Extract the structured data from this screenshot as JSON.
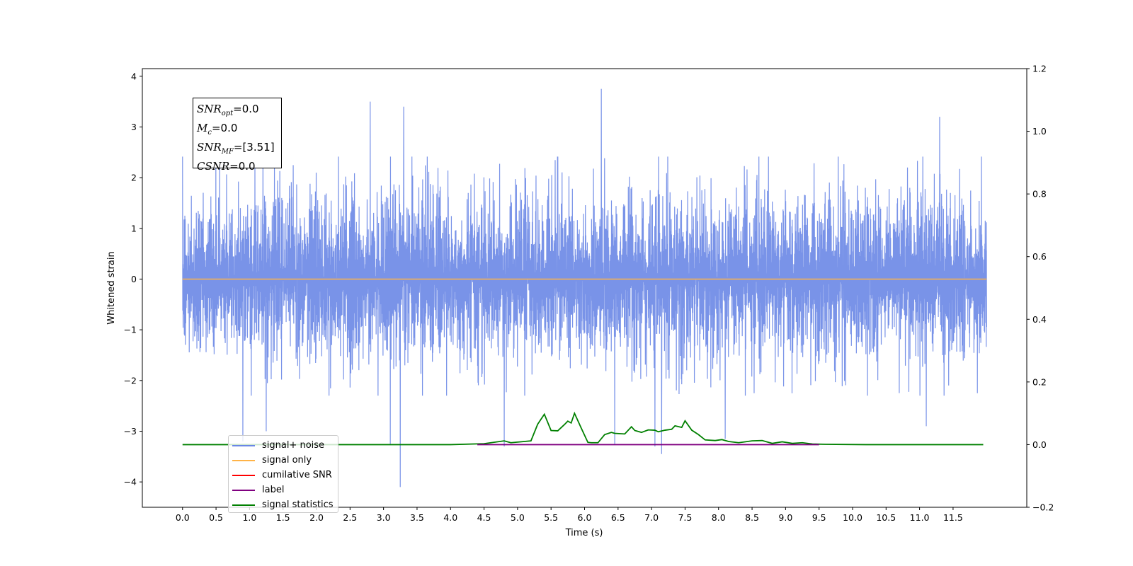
{
  "chart_data": {
    "type": "line",
    "xlabel": "Time (s)",
    "ylabel": "Whitened strain",
    "xlim": [
      -0.6,
      12.6
    ],
    "ylim": [
      -4.5,
      4.15
    ],
    "y2lim": [
      -0.2,
      1.2
    ],
    "x_ticks": [
      0.0,
      0.5,
      1.0,
      1.5,
      2.0,
      2.5,
      3.0,
      3.5,
      4.0,
      4.5,
      5.0,
      5.5,
      6.0,
      6.5,
      7.0,
      7.5,
      8.0,
      8.5,
      9.0,
      9.5,
      10.0,
      10.5,
      11.0,
      11.5
    ],
    "x_tick_labels": [
      "0.0",
      "0.5",
      "1.0",
      "1.5",
      "2.0",
      "2.5",
      "3.0",
      "3.5",
      "4.0",
      "4.5",
      "5.0",
      "5.5",
      "6.0",
      "6.5",
      "7.0",
      "7.5",
      "8.0",
      "8.5",
      "9.0",
      "9.5",
      "10.0",
      "10.5",
      "11.0",
      "11.5"
    ],
    "y_ticks": [
      -4,
      -3,
      -2,
      -1,
      0,
      1,
      2,
      3,
      4
    ],
    "y_tick_labels": [
      "−4",
      "−3",
      "−2",
      "−1",
      "0",
      "1",
      "2",
      "3",
      "4"
    ],
    "y2_ticks": [
      -0.2,
      0.0,
      0.2,
      0.4,
      0.6,
      0.8,
      1.0,
      1.2
    ],
    "y2_tick_labels": [
      "−0.2",
      "0.0",
      "0.2",
      "0.4",
      "0.6",
      "0.8",
      "1.0",
      "1.2"
    ],
    "grid": false,
    "legend_position": "lower-left",
    "series": [
      {
        "name": "signal+ noise",
        "color": "#6a87e6",
        "axis": "left",
        "x_range": [
          0,
          12
        ],
        "typical_range": [
          -1.9,
          2.1
        ],
        "spikes": [
          {
            "x": 1.2,
            "y": 2.5
          },
          {
            "x": 2.8,
            "y": 3.5
          },
          {
            "x": 3.3,
            "y": 3.4
          },
          {
            "x": 6.25,
            "y": 3.75
          },
          {
            "x": 8.1,
            "y": 3.25
          },
          {
            "x": 11.3,
            "y": 3.2
          },
          {
            "x": 0.9,
            "y": -3.2
          },
          {
            "x": 1.25,
            "y": -3.0
          },
          {
            "x": 3.1,
            "y": -3.25
          },
          {
            "x": 3.25,
            "y": -4.1
          },
          {
            "x": 4.8,
            "y": -3.3
          },
          {
            "x": 6.45,
            "y": -3.25
          },
          {
            "x": 7.05,
            "y": -3.3
          },
          {
            "x": 7.15,
            "y": -3.45
          },
          {
            "x": 8.1,
            "y": -3.15
          },
          {
            "x": 11.1,
            "y": -2.9
          }
        ]
      },
      {
        "name": "signal only",
        "color": "#ffb347",
        "axis": "left",
        "x": [
          0,
          12
        ],
        "y": [
          0,
          0
        ]
      },
      {
        "name": "cumilative SNR",
        "color": "#ff0000",
        "axis": "right",
        "x": [],
        "y": []
      },
      {
        "name": "label",
        "color": "#800080",
        "axis": "right",
        "x": [
          4.4,
          9.5
        ],
        "y": [
          0.0,
          0.0
        ]
      },
      {
        "name": "signal statistics",
        "color": "#008000",
        "axis": "right",
        "x": [
          0.0,
          4.0,
          4.5,
          4.8,
          4.9,
          5.0,
          5.2,
          5.3,
          5.4,
          5.5,
          5.6,
          5.7,
          5.75,
          5.8,
          5.85,
          5.95,
          6.05,
          6.1,
          6.2,
          6.3,
          6.4,
          6.45,
          6.6,
          6.7,
          6.75,
          6.85,
          6.95,
          7.05,
          7.1,
          7.2,
          7.3,
          7.35,
          7.45,
          7.5,
          7.6,
          7.7,
          7.8,
          7.95,
          8.05,
          8.15,
          8.3,
          8.5,
          8.65,
          8.8,
          8.95,
          9.1,
          9.25,
          9.4,
          9.6,
          10.2,
          11.95
        ],
        "y": [
          0.0,
          0.0,
          0.003,
          0.012,
          0.006,
          0.008,
          0.012,
          0.065,
          0.097,
          0.045,
          0.044,
          0.064,
          0.075,
          0.069,
          0.1,
          0.053,
          0.007,
          0.006,
          0.006,
          0.032,
          0.039,
          0.036,
          0.034,
          0.057,
          0.045,
          0.039,
          0.047,
          0.046,
          0.041,
          0.046,
          0.049,
          0.06,
          0.055,
          0.076,
          0.046,
          0.032,
          0.015,
          0.013,
          0.016,
          0.01,
          0.006,
          0.012,
          0.013,
          0.004,
          0.009,
          0.004,
          0.006,
          0.002,
          0.001,
          0.0,
          0.0
        ]
      }
    ]
  },
  "info_box": {
    "snr_opt_symbol": "SNR",
    "snr_opt_sub": "opt",
    "snr_opt_value": "=0.0",
    "mc_symbol": "M",
    "mc_sub": "c",
    "mc_value": "=0.0",
    "snr_mf_symbol": "SNR",
    "snr_mf_sub": "MF",
    "snr_mf_value": "=[3.51]",
    "csnr_symbol": "CSNR",
    "csnr_value": "=0.0"
  }
}
